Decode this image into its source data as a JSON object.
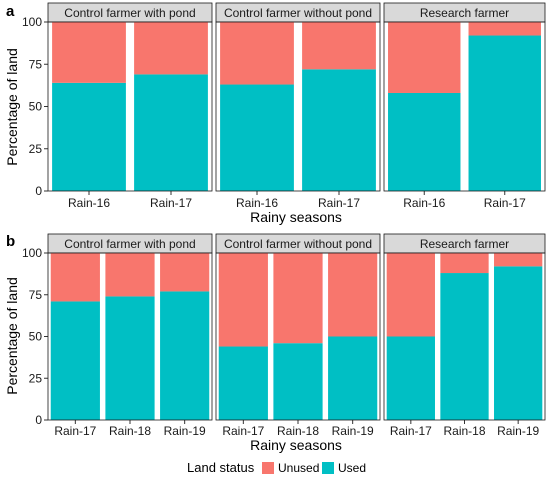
{
  "chart_data": [
    {
      "type": "bar",
      "panel_label": "a",
      "stacked": true,
      "ylabel": "Percentage of land",
      "xlabel": "Rainy seasons",
      "ylim": [
        0,
        100
      ],
      "yticks": [
        "0",
        "25",
        "50",
        "75",
        "100"
      ],
      "facets": [
        {
          "title": "Control farmer with pond",
          "categories": [
            "Rain-16",
            "Rain-17"
          ],
          "series": [
            {
              "name": "Used",
              "values": [
                64,
                69
              ]
            },
            {
              "name": "Unused",
              "values": [
                36,
                31
              ]
            }
          ]
        },
        {
          "title": "Control farmer without pond",
          "categories": [
            "Rain-16",
            "Rain-17"
          ],
          "series": [
            {
              "name": "Used",
              "values": [
                63,
                72
              ]
            },
            {
              "name": "Unused",
              "values": [
                37,
                28
              ]
            }
          ]
        },
        {
          "title": "Research farmer",
          "categories": [
            "Rain-16",
            "Rain-17"
          ],
          "series": [
            {
              "name": "Used",
              "values": [
                58,
                92
              ]
            },
            {
              "name": "Unused",
              "values": [
                42,
                8
              ]
            }
          ]
        }
      ]
    },
    {
      "type": "bar",
      "panel_label": "b",
      "stacked": true,
      "ylabel": "Percentage of land",
      "xlabel": "Rainy seasons",
      "ylim": [
        0,
        100
      ],
      "yticks": [
        "0",
        "25",
        "50",
        "75",
        "100"
      ],
      "facets": [
        {
          "title": "Control farmer with pond",
          "categories": [
            "Rain-17",
            "Rain-18",
            "Rain-19"
          ],
          "series": [
            {
              "name": "Used",
              "values": [
                71,
                74,
                77
              ]
            },
            {
              "name": "Unused",
              "values": [
                29,
                26,
                23
              ]
            }
          ]
        },
        {
          "title": "Control farmer without pond",
          "categories": [
            "Rain-17",
            "Rain-18",
            "Rain-19"
          ],
          "series": [
            {
              "name": "Used",
              "values": [
                44,
                46,
                50
              ]
            },
            {
              "name": "Unused",
              "values": [
                56,
                54,
                50
              ]
            }
          ]
        },
        {
          "title": "Research farmer",
          "categories": [
            "Rain-17",
            "Rain-18",
            "Rain-19"
          ],
          "series": [
            {
              "name": "Used",
              "values": [
                50,
                88,
                92
              ]
            },
            {
              "name": "Unused",
              "values": [
                50,
                12,
                8
              ]
            }
          ]
        }
      ]
    }
  ],
  "legend": {
    "title": "Land status",
    "placement": "bottom",
    "items": [
      {
        "label": "Unused",
        "color": "#F8766D"
      },
      {
        "label": "Used",
        "color": "#00BFC4"
      }
    ]
  },
  "colors": {
    "Used": "#00BFC4",
    "Unused": "#F8766D",
    "strip": "#D9D9D9"
  }
}
